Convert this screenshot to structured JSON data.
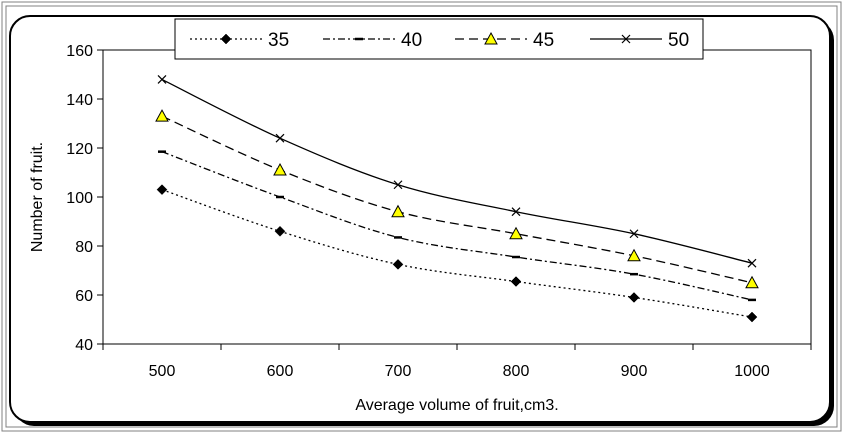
{
  "chart_data": {
    "type": "line",
    "title": "",
    "xlabel": "Average volume of fruit,cm3.",
    "ylabel": "Number of fruit.",
    "x": [
      500,
      600,
      700,
      800,
      900,
      1000
    ],
    "xlim": [
      450,
      1050
    ],
    "ylim": [
      40,
      160
    ],
    "yticks": [
      40,
      60,
      80,
      100,
      120,
      140,
      160
    ],
    "grid": false,
    "legend_position": "top",
    "series": [
      {
        "name": "35",
        "values": [
          103,
          86,
          72.5,
          65.5,
          59,
          51
        ],
        "marker": "diamond",
        "dash": "dotted",
        "marker_color": "#000000"
      },
      {
        "name": "40",
        "values": [
          118.5,
          100,
          83.5,
          75.5,
          68.5,
          58
        ],
        "marker": "dash",
        "dash": "dash-dot",
        "marker_color": "#000000"
      },
      {
        "name": "45",
        "values": [
          133,
          111,
          94,
          85,
          76,
          65
        ],
        "marker": "triangle",
        "dash": "dashed",
        "marker_color": "#ffff00"
      },
      {
        "name": "50",
        "values": [
          148,
          124,
          105,
          94,
          85,
          73
        ],
        "marker": "x",
        "dash": "solid",
        "marker_color": "#000000"
      }
    ]
  }
}
